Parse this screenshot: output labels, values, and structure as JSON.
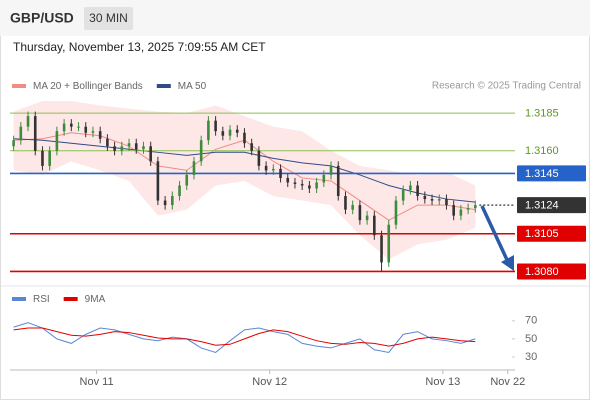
{
  "header": {
    "symbol": "GBP/USD",
    "interval": "30 MIN",
    "timestamp": "Thursday, November 13, 2025 7:09:55 AM CET",
    "credit": "Research © 2025 Trading Central"
  },
  "chart_data": [
    {
      "type": "candlestick",
      "xlim": [
        0,
        140
      ],
      "ylim": [
        1.3073,
        1.3197
      ],
      "up_color": "#3c8c3c",
      "down_color": "#333333",
      "candles": {
        "x": [
          1,
          3,
          5,
          7,
          9,
          11,
          13,
          15,
          17,
          19,
          21,
          23,
          25,
          27,
          29,
          31,
          33,
          35,
          37,
          39,
          41,
          43,
          45,
          47,
          49,
          51,
          53,
          55,
          57,
          59,
          61,
          63,
          65,
          67,
          69,
          71,
          73,
          75,
          77,
          79,
          81,
          83,
          85,
          87,
          89,
          91,
          93,
          95,
          97,
          99,
          101,
          103,
          105,
          107,
          109,
          111,
          113,
          115,
          117,
          119,
          121,
          123,
          125,
          127,
          129
        ],
        "open": [
          1.3163,
          1.3167,
          1.3176,
          1.3183,
          1.316,
          1.315,
          1.316,
          1.3173,
          1.3178,
          1.3176,
          1.3176,
          1.3172,
          1.3173,
          1.3168,
          1.3163,
          1.316,
          1.3163,
          1.3165,
          1.3161,
          1.3163,
          1.3153,
          1.3127,
          1.3124,
          1.313,
          1.3137,
          1.3144,
          1.3153,
          1.3167,
          1.318,
          1.3173,
          1.317,
          1.3174,
          1.3172,
          1.3165,
          1.316,
          1.315,
          1.3147,
          1.3148,
          1.3142,
          1.3139,
          1.3138,
          1.3137,
          1.3135,
          1.3139,
          1.3144,
          1.315,
          1.313,
          1.3121,
          1.3124,
          1.3114,
          1.3117,
          1.3104,
          1.3086,
          1.3111,
          1.3127,
          1.3134,
          1.3137,
          1.313,
          1.3128,
          1.3127,
          1.3128,
          1.3124,
          1.3117,
          1.3121,
          1.3122
        ],
        "high": [
          1.317,
          1.3179,
          1.3186,
          1.3186,
          1.3163,
          1.3163,
          1.3176,
          1.3181,
          1.3181,
          1.3179,
          1.3179,
          1.3176,
          1.3176,
          1.3171,
          1.3166,
          1.3166,
          1.3168,
          1.3168,
          1.3166,
          1.3166,
          1.3156,
          1.313,
          1.3133,
          1.314,
          1.3147,
          1.3156,
          1.317,
          1.3183,
          1.3183,
          1.3176,
          1.3177,
          1.3177,
          1.3175,
          1.3168,
          1.3163,
          1.3153,
          1.3151,
          1.3151,
          1.3145,
          1.3142,
          1.3141,
          1.314,
          1.3142,
          1.3147,
          1.3153,
          1.3153,
          1.3133,
          1.3127,
          1.3127,
          1.312,
          1.312,
          1.3107,
          1.3114,
          1.313,
          1.3137,
          1.314,
          1.314,
          1.3133,
          1.3131,
          1.3131,
          1.3131,
          1.3127,
          1.3124,
          1.3125,
          1.3127
        ],
        "low": [
          1.316,
          1.3164,
          1.3173,
          1.3157,
          1.3147,
          1.3147,
          1.3157,
          1.317,
          1.3173,
          1.3173,
          1.3169,
          1.3169,
          1.3165,
          1.316,
          1.3157,
          1.3157,
          1.316,
          1.3158,
          1.3158,
          1.315,
          1.3124,
          1.3121,
          1.3121,
          1.3127,
          1.3134,
          1.3141,
          1.315,
          1.3164,
          1.317,
          1.3167,
          1.3167,
          1.3169,
          1.3162,
          1.3157,
          1.3147,
          1.3144,
          1.3144,
          1.3139,
          1.3136,
          1.3135,
          1.3134,
          1.3132,
          1.3132,
          1.3136,
          1.3141,
          1.3127,
          1.3118,
          1.3118,
          1.3111,
          1.3111,
          1.3101,
          1.308,
          1.3083,
          1.3108,
          1.3124,
          1.3131,
          1.3127,
          1.3125,
          1.3124,
          1.3124,
          1.3121,
          1.3114,
          1.3114,
          1.3118,
          1.3119
        ],
        "close": [
          1.3167,
          1.3176,
          1.3183,
          1.316,
          1.315,
          1.316,
          1.3173,
          1.3178,
          1.3176,
          1.3176,
          1.3172,
          1.3173,
          1.3168,
          1.3163,
          1.316,
          1.3163,
          1.3165,
          1.3161,
          1.3163,
          1.3153,
          1.3127,
          1.3124,
          1.313,
          1.3137,
          1.3144,
          1.3153,
          1.3167,
          1.318,
          1.3173,
          1.317,
          1.3174,
          1.3172,
          1.3165,
          1.316,
          1.315,
          1.3147,
          1.3148,
          1.3142,
          1.3139,
          1.3138,
          1.3137,
          1.3135,
          1.3139,
          1.3144,
          1.315,
          1.313,
          1.3121,
          1.3124,
          1.3114,
          1.3117,
          1.3104,
          1.3086,
          1.3111,
          1.3127,
          1.3134,
          1.3137,
          1.313,
          1.3128,
          1.3127,
          1.3128,
          1.3124,
          1.3117,
          1.3121,
          1.3122,
          1.3124
        ]
      },
      "series": [
        {
          "name": "MA 20 + Bollinger Bands",
          "color": "#f28b82",
          "band_color": "#fde3e3",
          "x": [
            1,
            9,
            17,
            25,
            33,
            41,
            49,
            57,
            65,
            73,
            81,
            89,
            97,
            105,
            113,
            121,
            129
          ],
          "values": [
            1.3167,
            1.3168,
            1.3172,
            1.317,
            1.3163,
            1.315,
            1.3147,
            1.3161,
            1.3167,
            1.3153,
            1.3142,
            1.314,
            1.3127,
            1.3114,
            1.3124,
            1.3124,
            1.3121
          ],
          "upper": [
            1.3186,
            1.3193,
            1.3193,
            1.319,
            1.3188,
            1.3186,
            1.3185,
            1.319,
            1.3183,
            1.3176,
            1.3173,
            1.316,
            1.315,
            1.3147,
            1.3144,
            1.3146,
            1.3137
          ],
          "lower": [
            1.3147,
            1.3144,
            1.3153,
            1.3147,
            1.314,
            1.3117,
            1.3121,
            1.3137,
            1.314,
            1.313,
            1.3127,
            1.3124,
            1.3104,
            1.3088,
            1.3098,
            1.3101,
            1.3109
          ]
        },
        {
          "name": "MA 50",
          "color": "#2f4b8a",
          "x": [
            1,
            9,
            17,
            25,
            33,
            41,
            49,
            57,
            65,
            73,
            81,
            89,
            97,
            105,
            113,
            121,
            129
          ],
          "values": [
            1.3168,
            1.3167,
            1.3165,
            1.3163,
            1.3161,
            1.3159,
            1.3157,
            1.3159,
            1.3159,
            1.3155,
            1.3152,
            1.315,
            1.3144,
            1.3137,
            1.3132,
            1.3128,
            1.3126
          ]
        }
      ],
      "levels": [
        {
          "value": 1.3185,
          "label": "1.3185",
          "color": "#8dc050",
          "text_color": "#5a9a1c",
          "boxed": false,
          "dotted": false
        },
        {
          "value": 1.316,
          "label": "1.3160",
          "color": "#8dc050",
          "text_color": "#5a9a1c",
          "boxed": false,
          "dotted": false
        },
        {
          "value": 1.3145,
          "label": "1.3145",
          "color": "#2563c9",
          "text_color": "#ffffff",
          "boxed": true,
          "dotted": false
        },
        {
          "value": 1.3124,
          "label": "1.3124",
          "color": "#333333",
          "text_color": "#ffffff",
          "boxed": true,
          "dotted": true
        },
        {
          "value": 1.3105,
          "label": "1.3105",
          "color": "#e00000",
          "text_color": "#ffffff",
          "boxed": true,
          "dotted": false
        },
        {
          "value": 1.308,
          "label": "1.3080",
          "color": "#e00000",
          "text_color": "#ffffff",
          "boxed": true,
          "dotted": false
        }
      ]
    },
    {
      "type": "line",
      "xlim": [
        0,
        140
      ],
      "ylim": [
        10,
        82
      ],
      "yticks": [
        70,
        50,
        30
      ],
      "xticks": [
        {
          "value": 24,
          "label": "Nov 11"
        },
        {
          "value": 72,
          "label": "Nov 12"
        },
        {
          "value": 120,
          "label": "Nov 13"
        },
        {
          "value": 138,
          "label": "Nov 22"
        }
      ],
      "series": [
        {
          "name": "RSI",
          "color": "#5b85d6",
          "x": [
            1,
            5,
            9,
            13,
            17,
            21,
            25,
            29,
            33,
            37,
            41,
            45,
            49,
            53,
            57,
            61,
            65,
            69,
            73,
            77,
            81,
            85,
            89,
            93,
            97,
            101,
            105,
            109,
            113,
            117,
            121,
            125,
            129
          ],
          "values": [
            63,
            68,
            62,
            50,
            45,
            55,
            62,
            60,
            55,
            50,
            48,
            52,
            50,
            40,
            35,
            48,
            60,
            62,
            58,
            55,
            45,
            42,
            40,
            45,
            50,
            38,
            35,
            55,
            58,
            50,
            48,
            45,
            50
          ]
        },
        {
          "name": "9MA",
          "color": "#e00000",
          "x": [
            1,
            5,
            9,
            13,
            17,
            21,
            25,
            29,
            33,
            37,
            41,
            45,
            49,
            53,
            57,
            61,
            65,
            69,
            73,
            77,
            81,
            85,
            89,
            93,
            97,
            101,
            105,
            109,
            113,
            117,
            121,
            125,
            129
          ],
          "values": [
            60,
            62,
            62,
            58,
            54,
            53,
            55,
            58,
            57,
            54,
            51,
            50,
            50,
            47,
            43,
            44,
            50,
            56,
            60,
            58,
            53,
            48,
            45,
            44,
            46,
            45,
            42,
            45,
            50,
            52,
            50,
            48,
            47
          ]
        }
      ]
    }
  ]
}
